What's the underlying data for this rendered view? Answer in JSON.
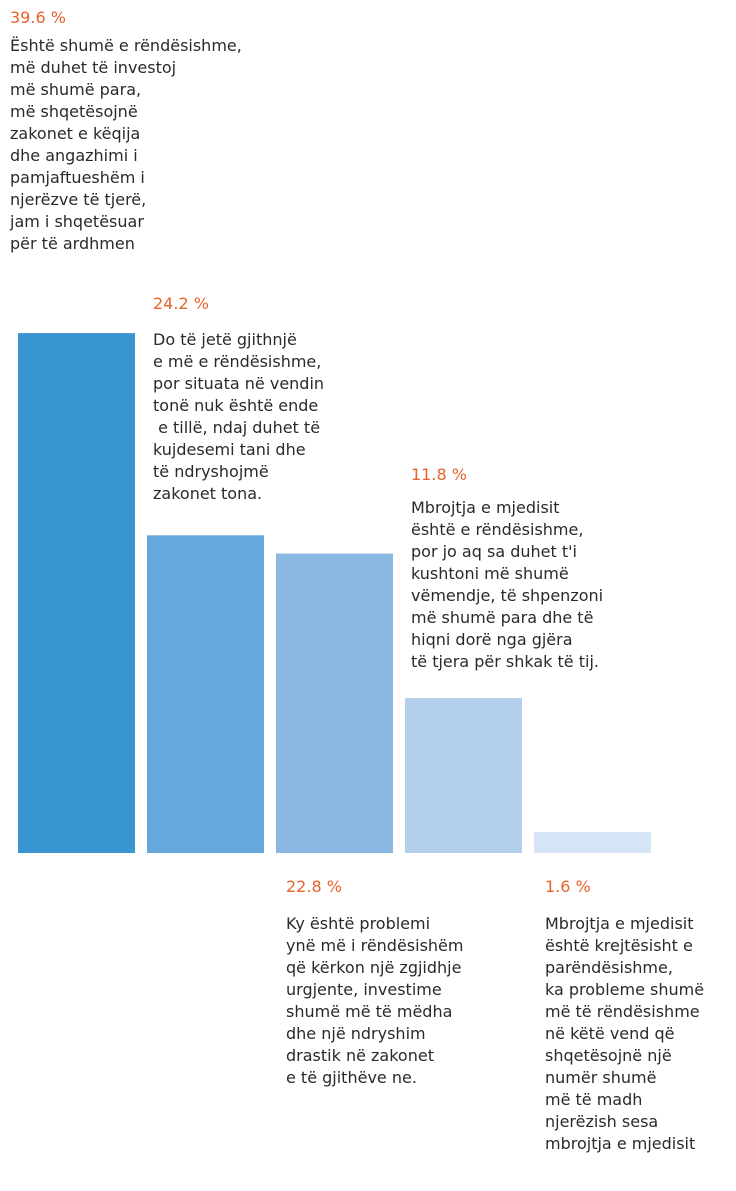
{
  "chart_data": {
    "type": "bar",
    "categories": [
      "Është shumë e rëndësishme, më duhet të investoj më shumë para, më shqetësojnë zakonet e këqija dhe angazhimi i pamjaftueshëm i njerëzve të tjerë, jam i shqetësuar për të ardhmen",
      "Do të jetë gjithnjë e më e rëndësishme, por situata në vendin tonë nuk është ende e tillë, ndaj duhet të kujdesemi tani dhe të ndryshojmë zakonet tona.",
      "Ky është problemi ynë më i rëndësishëm që kërkon një zgjidhje urgjente, investime shumë më të mëdha dhe një ndryshim drastik në zakonet e të gjithëve ne.",
      "Mbrojtja e mjedisit është e rëndësishme, por jo aq sa duhet t'i kushtoni më shumë vëmendje, të shpenzoni më shumë para dhe të hiqni dorë nga gjëra të tjera për shkak të tij.",
      "Mbrojtja e mjedisit është krejtësisht e parëndësishme, ka probleme shumë më të rëndësishme në këtë vend që shqetësojnë një numër shumë më të madh njerëzish sesa mbrojtja e mjedisit"
    ],
    "values": [
      39.6,
      24.2,
      22.8,
      11.8,
      1.6
    ],
    "value_labels": [
      "39.6 %",
      "24.2 %",
      "22.8 %",
      "11.8  %",
      "1.6 %"
    ],
    "label_lines": [
      [
        "Është shumë e rëndësishme,",
        "më duhet të investoj",
        "më shumë para,",
        "më shqetësojnë",
        "zakonet e këqija",
        "dhe angazhimi i",
        "pamjaftueshëm i",
        "njerëzve të tjerë,",
        "jam i shqetësuar",
        "për të ardhmen"
      ],
      [
        "Do të jetë gjithnjë",
        "e më e rëndësishme,",
        "por situata në vendin",
        "tonë nuk është ende",
        " e tillë, ndaj duhet të",
        "kujdesemi tani dhe",
        "të ndryshojmë",
        "zakonet tona."
      ],
      [
        "Ky është problemi",
        "ynë më i rëndësishëm",
        "që kërkon një zgjidhje",
        "urgjente, investime",
        "shumë më të mëdha",
        "dhe një ndryshim",
        "drastik në zakonet",
        "e të gjithëve ne."
      ],
      [
        "Mbrojtja e mjedisit",
        "është e rëndësishme,",
        "por jo aq sa duhet t'i",
        "kushtoni më shumë",
        "vëmendje, të shpenzoni",
        "më shumë para dhe të",
        "hiqni dorë nga gjëra",
        "të tjera për shkak të tij."
      ],
      [
        "Mbrojtja e mjedisit",
        "është krejtësisht e",
        "parëndësishme,",
        "ka probleme shumë",
        "më të rëndësishme",
        "në këtë vend që",
        "shqetësojnë një",
        "numër shumë",
        "më të madh",
        "njerëzish sesa",
        "mbrojtja e mjedisit"
      ]
    ],
    "colors": [
      "#3a96d3",
      "#66a8dc",
      "#8ab8e2",
      "#b4cfec",
      "#d6e5f5"
    ],
    "value_color": "#e8622c",
    "text_color": "#2a2a2a",
    "title": "",
    "xlabel": "",
    "ylabel": ""
  }
}
